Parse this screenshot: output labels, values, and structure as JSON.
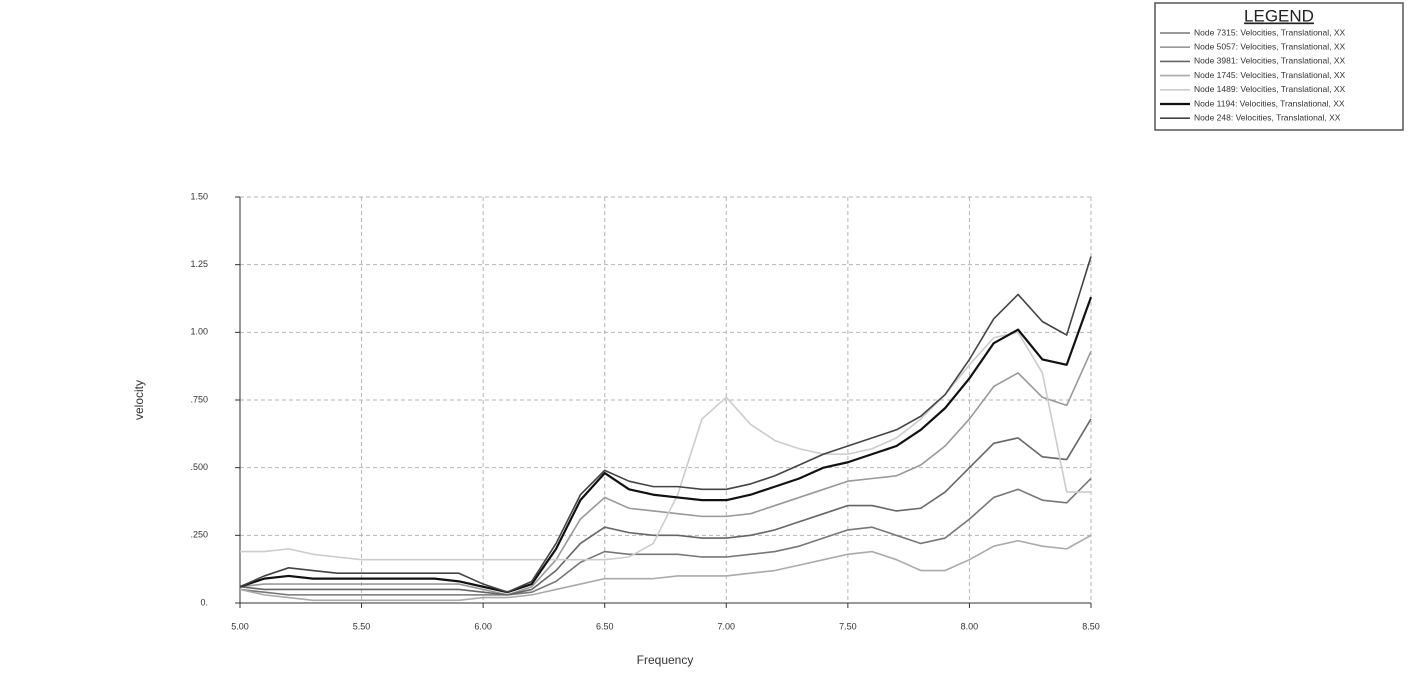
{
  "chart_data": {
    "type": "line",
    "legend_title": "LEGEND",
    "xlabel": "Frequency",
    "ylabel": "velocity",
    "legend": "top-right",
    "grid": true,
    "xlim": [
      5,
      8.5
    ],
    "ylim": [
      0,
      1.5
    ],
    "xticks": [
      {
        "value": 5,
        "label": "5.00"
      },
      {
        "value": 5.5,
        "label": "5.50"
      },
      {
        "value": 6,
        "label": "6.00"
      },
      {
        "value": 6.5,
        "label": "6.50"
      },
      {
        "value": 7,
        "label": "7.00"
      },
      {
        "value": 7.5,
        "label": "7.50"
      },
      {
        "value": 8,
        "label": "8.00"
      },
      {
        "value": 8.5,
        "label": "8.50"
      }
    ],
    "yticks": [
      {
        "value": 0,
        "label": "0."
      },
      {
        "value": 0.25,
        "label": ".250"
      },
      {
        "value": 0.5,
        "label": ".500"
      },
      {
        "value": 0.75,
        "label": ".750"
      },
      {
        "value": 1,
        "label": "1.00"
      },
      {
        "value": 1.25,
        "label": "1.25"
      },
      {
        "value": 1.5,
        "label": "1.50"
      }
    ],
    "x": [
      5,
      5.1,
      5.2,
      5.3,
      5.4,
      5.5,
      5.6,
      5.7,
      5.8,
      5.9,
      6,
      6.1,
      6.2,
      6.3,
      6.4,
      6.5,
      6.6,
      6.7,
      6.8,
      6.9,
      7,
      7.1,
      7.2,
      7.3,
      7.4,
      7.5,
      7.6,
      7.7,
      7.8,
      7.9,
      8,
      8.1,
      8.2,
      8.3,
      8.4,
      8.5
    ],
    "series": [
      {
        "name": "Node 7315: Velocities, Translational, XX",
        "color": "#777777",
        "values": [
          0.05,
          0.04,
          0.03,
          0.03,
          0.03,
          0.03,
          0.03,
          0.03,
          0.03,
          0.03,
          0.03,
          0.03,
          0.04,
          0.08,
          0.15,
          0.19,
          0.18,
          0.18,
          0.18,
          0.17,
          0.17,
          0.18,
          0.19,
          0.21,
          0.24,
          0.27,
          0.28,
          0.25,
          0.22,
          0.24,
          0.31,
          0.39,
          0.42,
          0.38,
          0.37,
          0.46
        ]
      },
      {
        "name": "Node 5057: Velocities, Translational, XX",
        "color": "#999999",
        "values": [
          0.06,
          0.07,
          0.07,
          0.07,
          0.07,
          0.07,
          0.07,
          0.07,
          0.07,
          0.07,
          0.05,
          0.03,
          0.06,
          0.16,
          0.31,
          0.39,
          0.35,
          0.34,
          0.33,
          0.32,
          0.32,
          0.33,
          0.36,
          0.39,
          0.42,
          0.45,
          0.46,
          0.47,
          0.51,
          0.58,
          0.68,
          0.8,
          0.85,
          0.76,
          0.73,
          0.93
        ]
      },
      {
        "name": "Node 3981: Velocities, Translational, XX",
        "color": "#666666",
        "values": [
          0.06,
          0.05,
          0.05,
          0.05,
          0.05,
          0.05,
          0.05,
          0.05,
          0.05,
          0.05,
          0.04,
          0.03,
          0.05,
          0.12,
          0.22,
          0.28,
          0.26,
          0.25,
          0.25,
          0.24,
          0.24,
          0.25,
          0.27,
          0.3,
          0.33,
          0.36,
          0.36,
          0.34,
          0.35,
          0.41,
          0.5,
          0.59,
          0.61,
          0.54,
          0.53,
          0.68
        ]
      },
      {
        "name": "Node 1745: Velocities, Translational, XX",
        "color": "#aaaaaa",
        "values": [
          0.05,
          0.03,
          0.02,
          0.01,
          0.01,
          0.01,
          0.01,
          0.01,
          0.01,
          0.01,
          0.02,
          0.02,
          0.03,
          0.05,
          0.07,
          0.09,
          0.09,
          0.09,
          0.1,
          0.1,
          0.1,
          0.11,
          0.12,
          0.14,
          0.16,
          0.18,
          0.19,
          0.16,
          0.12,
          0.12,
          0.16,
          0.21,
          0.23,
          0.21,
          0.2,
          0.25
        ]
      },
      {
        "name": "Node 1489: Velocities, Translational, XX",
        "color": "#cccccc",
        "values": [
          0.19,
          0.19,
          0.2,
          0.18,
          0.17,
          0.16,
          0.16,
          0.16,
          0.16,
          0.16,
          0.16,
          0.16,
          0.16,
          0.16,
          0.16,
          0.16,
          0.17,
          0.22,
          0.4,
          0.68,
          0.76,
          0.66,
          0.6,
          0.57,
          0.55,
          0.55,
          0.57,
          0.61,
          0.68,
          0.77,
          0.88,
          0.98,
          1,
          0.85,
          0.41,
          0.41
        ]
      },
      {
        "name": "Node 1194: Velocities, Translational, XX",
        "color": "#111111",
        "values": [
          0.06,
          0.09,
          0.1,
          0.09,
          0.09,
          0.09,
          0.09,
          0.09,
          0.09,
          0.08,
          0.06,
          0.04,
          0.07,
          0.2,
          0.38,
          0.48,
          0.42,
          0.4,
          0.39,
          0.38,
          0.38,
          0.4,
          0.43,
          0.46,
          0.5,
          0.52,
          0.55,
          0.58,
          0.64,
          0.72,
          0.83,
          0.96,
          1.01,
          0.9,
          0.88,
          1.13
        ]
      },
      {
        "name": "Node 248: Velocities, Translational, XX",
        "color": "#444444",
        "values": [
          0.06,
          0.1,
          0.13,
          0.12,
          0.11,
          0.11,
          0.11,
          0.11,
          0.11,
          0.11,
          0.07,
          0.04,
          0.08,
          0.22,
          0.4,
          0.49,
          0.45,
          0.43,
          0.43,
          0.42,
          0.42,
          0.44,
          0.47,
          0.51,
          0.55,
          0.58,
          0.61,
          0.64,
          0.69,
          0.77,
          0.9,
          1.05,
          1.14,
          1.04,
          0.99,
          1.28
        ]
      }
    ]
  }
}
